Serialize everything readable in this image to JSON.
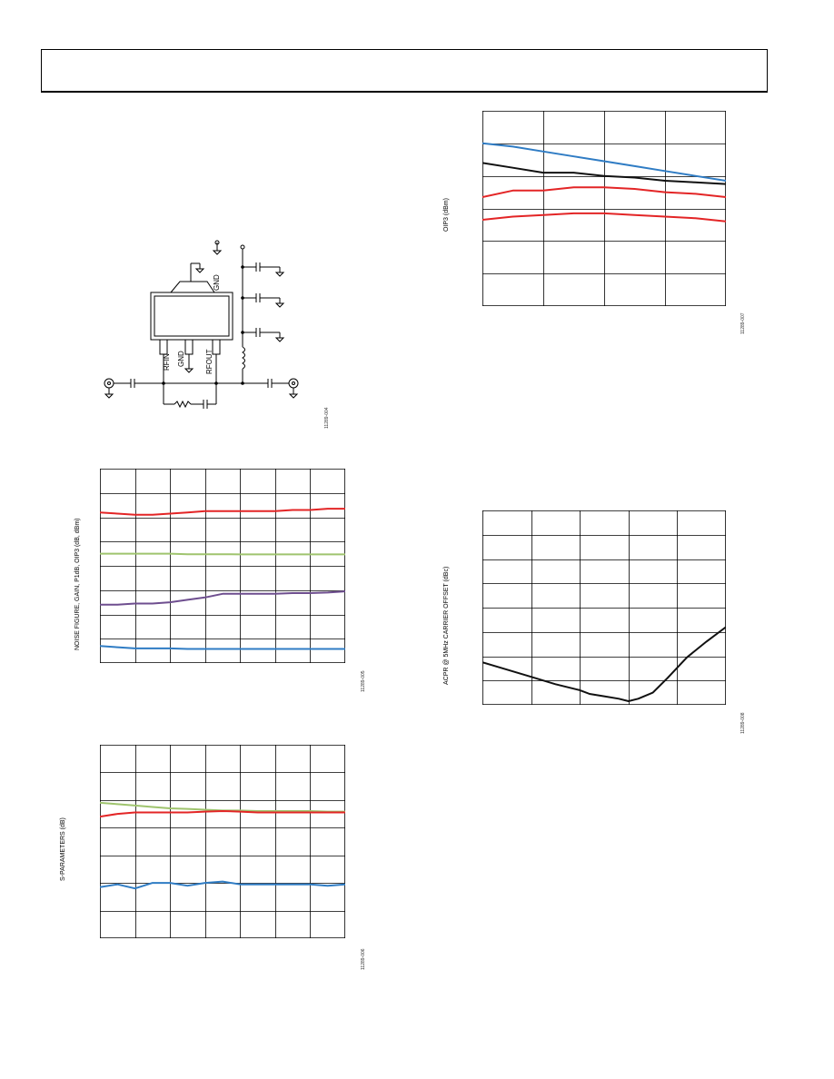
{
  "header": {
    "text": ""
  },
  "circuit": {
    "pin_gnd_top": "GND",
    "pin_rfin": "RFIN",
    "pin_gnd": "GND",
    "pin_rfout": "RFOUT",
    "fig_id": "11289-004"
  },
  "colors": {
    "red": "#e32526",
    "green": "#9fc46e",
    "purple": "#6e4e8f",
    "blue": "#2f7cc4",
    "black": "#111111",
    "grid": "#000000"
  },
  "chart_data": [
    {
      "id": "nf_gain_p1db_oip3",
      "type": "line",
      "ylabel": "NOISE FIGURE, GAIN, P1dB, OIP3 (dB, dBm)",
      "fig_id": "11289-005",
      "x": [
        0,
        0.5,
        1,
        1.5,
        2,
        2.5,
        3,
        3.5,
        4,
        4.5,
        5,
        5.5,
        6,
        6.5,
        7
      ],
      "xlim": [
        0,
        7
      ],
      "ylim": [
        0,
        8
      ],
      "grid": true,
      "series": [
        {
          "color": "red",
          "values": [
            6.2,
            6.15,
            6.1,
            6.1,
            6.15,
            6.2,
            6.25,
            6.25,
            6.25,
            6.25,
            6.25,
            6.3,
            6.3,
            6.35,
            6.35
          ]
        },
        {
          "color": "green",
          "values": [
            4.5,
            4.5,
            4.5,
            4.5,
            4.5,
            4.48,
            4.48,
            4.48,
            4.47,
            4.47,
            4.47,
            4.47,
            4.47,
            4.47,
            4.47
          ]
        },
        {
          "color": "purple",
          "values": [
            2.4,
            2.4,
            2.45,
            2.45,
            2.5,
            2.6,
            2.7,
            2.85,
            2.85,
            2.85,
            2.85,
            2.88,
            2.88,
            2.9,
            2.95
          ]
        },
        {
          "color": "blue",
          "values": [
            0.7,
            0.65,
            0.6,
            0.6,
            0.6,
            0.58,
            0.58,
            0.58,
            0.58,
            0.58,
            0.58,
            0.58,
            0.58,
            0.58,
            0.58
          ]
        }
      ]
    },
    {
      "id": "s_parameters",
      "type": "line",
      "ylabel": "S-PARAMETERS (dB)",
      "fig_id": "11289-006",
      "x": [
        0,
        0.5,
        1,
        1.5,
        2,
        2.5,
        3,
        3.5,
        4,
        4.5,
        5,
        5.5,
        6,
        6.5,
        7
      ],
      "xlim": [
        0,
        7
      ],
      "ylim": [
        0,
        7
      ],
      "grid": true,
      "series": [
        {
          "color": "green",
          "values": [
            4.9,
            4.85,
            4.8,
            4.75,
            4.7,
            4.68,
            4.65,
            4.62,
            4.62,
            4.6,
            4.6,
            4.6,
            4.6,
            4.58,
            4.58
          ]
        },
        {
          "color": "red",
          "values": [
            4.4,
            4.5,
            4.55,
            4.55,
            4.55,
            4.55,
            4.58,
            4.6,
            4.58,
            4.55,
            4.55,
            4.55,
            4.55,
            4.55,
            4.55
          ]
        },
        {
          "color": "blue",
          "values": [
            1.85,
            1.95,
            1.8,
            2.0,
            2.0,
            1.9,
            2.0,
            2.05,
            1.95,
            1.95,
            1.95,
            1.95,
            1.95,
            1.9,
            1.95
          ]
        }
      ]
    },
    {
      "id": "oip3",
      "type": "line",
      "ylabel": "OIP3 (dBm)",
      "fig_id": "11289-007",
      "x": [
        0,
        0.5,
        1,
        1.5,
        2,
        2.5,
        3,
        3.5,
        4
      ],
      "xlim": [
        0,
        4
      ],
      "ylim": [
        0,
        6
      ],
      "grid": true,
      "series": [
        {
          "color": "blue",
          "values": [
            5.0,
            4.9,
            4.75,
            4.6,
            4.45,
            4.3,
            4.15,
            4.0,
            3.85
          ]
        },
        {
          "color": "black",
          "values": [
            4.4,
            4.25,
            4.1,
            4.1,
            4.0,
            3.95,
            3.85,
            3.8,
            3.75
          ]
        },
        {
          "color": "red",
          "values": [
            3.35,
            3.55,
            3.55,
            3.65,
            3.65,
            3.6,
            3.5,
            3.45,
            3.35
          ]
        },
        {
          "color": "red",
          "values": [
            2.65,
            2.75,
            2.8,
            2.85,
            2.85,
            2.8,
            2.75,
            2.7,
            2.6
          ]
        }
      ]
    },
    {
      "id": "acpr",
      "type": "line",
      "ylabel": "ACPR @ 5MHz CARRIER OFFSET (dBc)",
      "fig_id": "11289-008",
      "x": [
        0,
        0.5,
        1,
        1.5,
        2,
        2.2,
        2.5,
        2.8,
        3.0,
        3.2,
        3.5,
        3.8,
        4.2,
        4.6,
        5.0
      ],
      "xlim": [
        0,
        5
      ],
      "ylim": [
        0,
        8
      ],
      "grid": true,
      "series": [
        {
          "color": "black",
          "values": [
            1.75,
            1.45,
            1.15,
            0.85,
            0.6,
            0.45,
            0.35,
            0.25,
            0.15,
            0.25,
            0.5,
            1.1,
            1.95,
            2.6,
            3.2
          ]
        }
      ]
    }
  ]
}
